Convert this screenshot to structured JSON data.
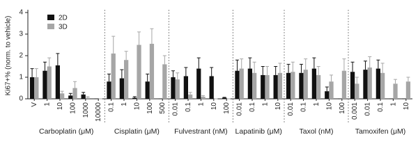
{
  "chart_data": {
    "type": "bar",
    "y_label": "Ki67+% (norm. to vehicle)",
    "groups": [
      {
        "label": "Carboplatin (μM)",
        "categories": [
          "V",
          "1",
          "10",
          "100",
          "1000",
          "10000"
        ]
      },
      {
        "label": "Cisplatin (μM)",
        "categories": [
          "0.1",
          "1",
          "10",
          "100",
          "500"
        ]
      },
      {
        "label": "Fulvestrant (nM)",
        "categories": [
          "0.01",
          "0.1",
          "1",
          "10",
          "100"
        ]
      },
      {
        "label": "Lapatinib (μM)",
        "categories": [
          "0.01",
          "0.1",
          "1",
          "10"
        ]
      },
      {
        "label": "Taxol (nM)",
        "categories": [
          "0.01",
          "0.1",
          "1",
          "10",
          "100"
        ]
      },
      {
        "label": "Tamoxifen (μM)",
        "categories": [
          "0.001",
          "0.01",
          "0.1",
          "1",
          "10"
        ]
      }
    ],
    "series": [
      {
        "name": "2D",
        "color": "#111111",
        "values": [
          [
            1.0,
            1.3,
            1.55,
            0.15,
            0.2,
            0
          ],
          [
            0.8,
            0.95,
            0.05,
            0.8,
            0
          ],
          [
            1.0,
            1.05,
            1.4,
            1.05,
            0.05
          ],
          [
            1.3,
            1.4,
            1.1,
            1.1
          ],
          [
            1.2,
            1.2,
            1.4,
            0.35,
            0
          ],
          [
            1.25,
            1.35,
            1.4,
            0,
            0
          ]
        ],
        "errors": [
          [
            0.4,
            0.4,
            0.55,
            0.1,
            0.1,
            0
          ],
          [
            0.35,
            0.4,
            0.05,
            0.35,
            0
          ],
          [
            0.3,
            0.4,
            0.5,
            0.4,
            0.02
          ],
          [
            0.5,
            0.5,
            0.4,
            0.4
          ],
          [
            0.4,
            0.4,
            0.5,
            0.2,
            0
          ],
          [
            0.45,
            0.4,
            0.4,
            0,
            0
          ]
        ]
      },
      {
        "name": "3D",
        "color": "#a6a6a6",
        "values": [
          [
            1.0,
            1.5,
            0.25,
            0.5,
            0.05,
            0
          ],
          [
            2.1,
            1.8,
            2.5,
            2.55,
            1.6
          ],
          [
            0.9,
            0.2,
            0.1,
            0,
            0
          ],
          [
            1.4,
            1.2,
            1.1,
            1.2
          ],
          [
            1.25,
            1.35,
            1.1,
            0.8,
            1.3
          ],
          [
            0.7,
            1.45,
            1.2,
            0.7,
            0.8
          ]
        ],
        "errors": [
          [
            0.4,
            0.4,
            0.1,
            0.3,
            0.05,
            0
          ],
          [
            0.8,
            0.4,
            0.6,
            0.7,
            0.4
          ],
          [
            0.3,
            0.1,
            0.05,
            0,
            0
          ],
          [
            0.45,
            0.5,
            0.4,
            0.45
          ],
          [
            0.45,
            0.5,
            0.4,
            0.3,
            0.55
          ],
          [
            0.3,
            0.5,
            0.45,
            0.2,
            0.2
          ]
        ]
      }
    ],
    "ylim": [
      0,
      4
    ],
    "yticks": [
      0,
      1,
      2,
      3,
      4
    ],
    "legend": "upper left"
  }
}
